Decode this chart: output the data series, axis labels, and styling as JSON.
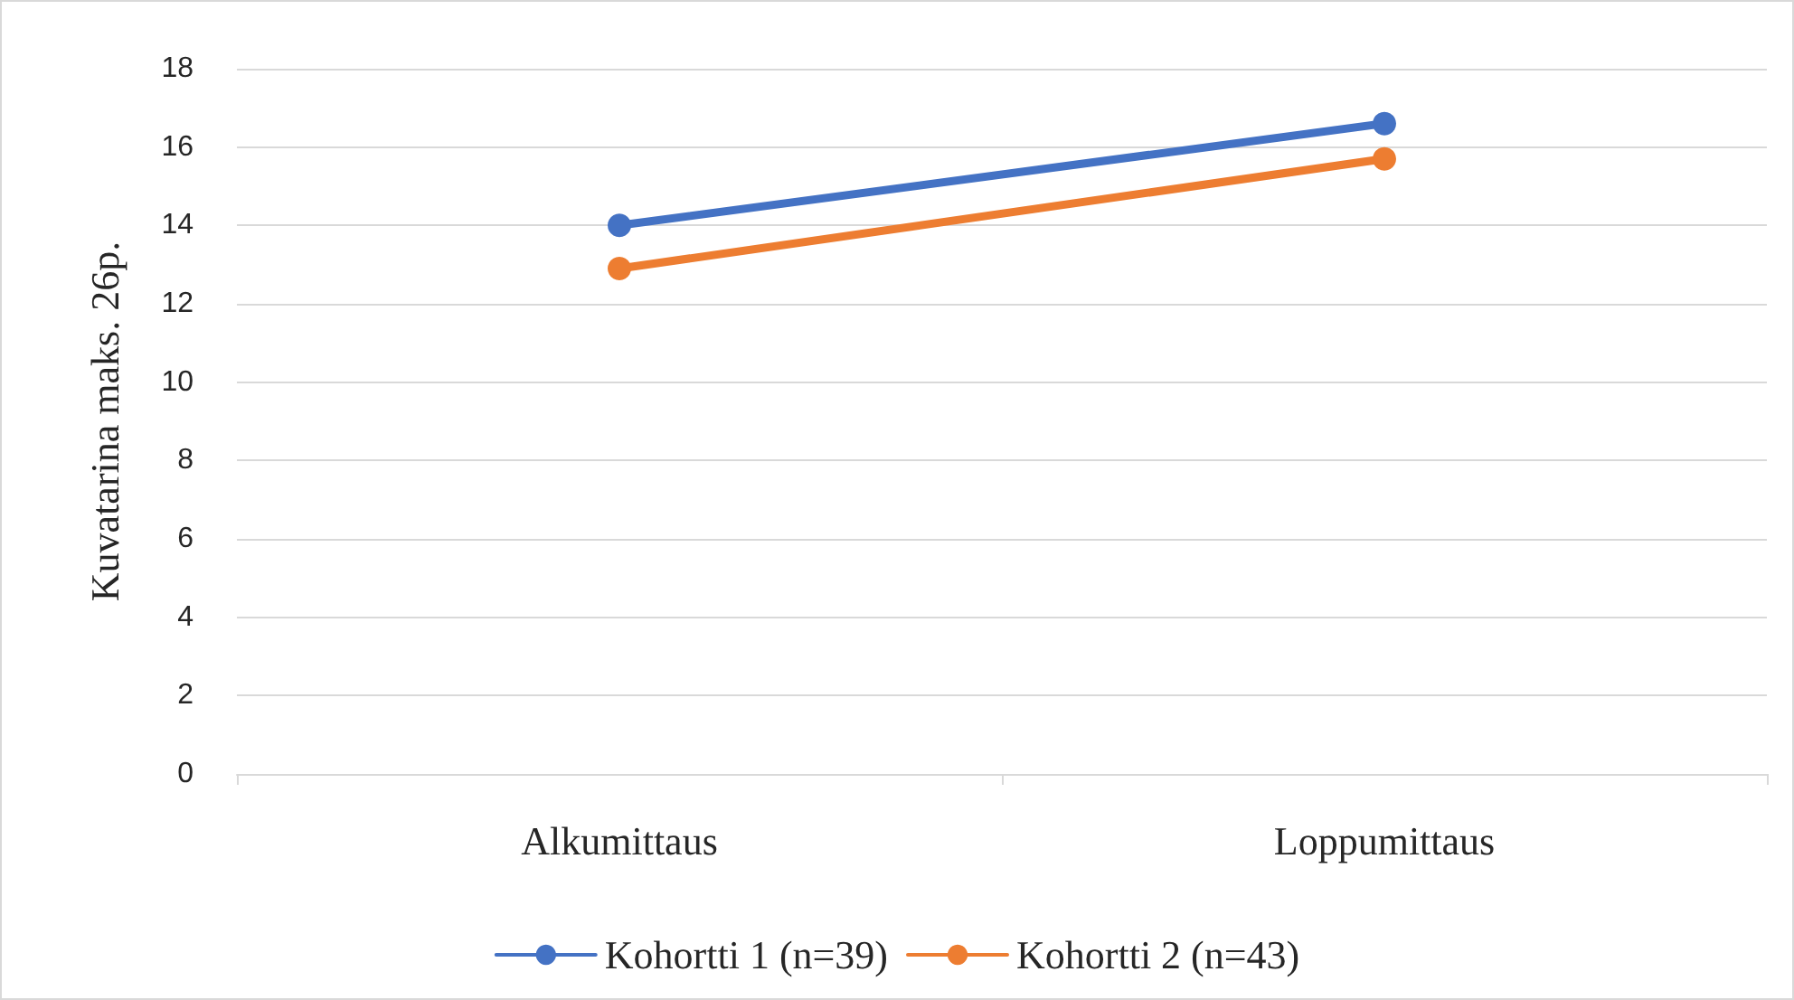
{
  "chart_data": {
    "type": "line",
    "ylabel": "Kuvatarina maks. 26p.",
    "categories": [
      "Alkumittaus",
      "Loppumittaus"
    ],
    "series": [
      {
        "name": "Kohortti 1 (n=39)",
        "color": "#4472c4",
        "values": [
          14.0,
          16.6
        ]
      },
      {
        "name": "Kohortti 2 (n=43)",
        "color": "#ed7d31",
        "values": [
          12.9,
          15.7
        ]
      }
    ],
    "ylim": [
      0,
      18
    ],
    "yticks": [
      0,
      2,
      4,
      6,
      8,
      10,
      12,
      14,
      16,
      18
    ],
    "grid": "y",
    "legend": "bottom",
    "marker": "circle",
    "line_style": "solid"
  }
}
